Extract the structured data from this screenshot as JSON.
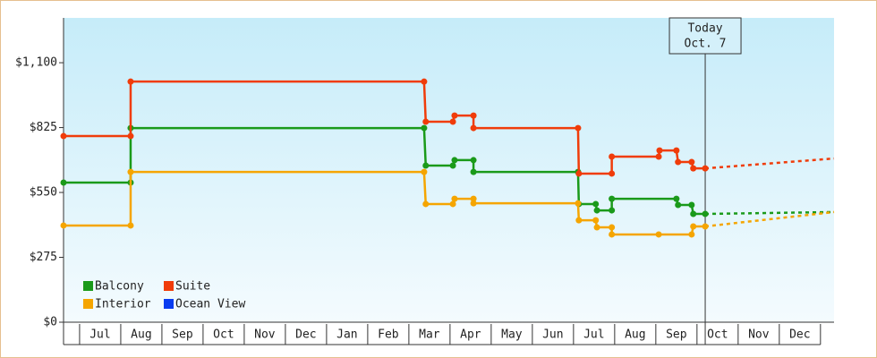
{
  "chart_data": {
    "type": "step-line",
    "xlim": [
      -0.39,
      18.33
    ],
    "xticks": [
      {
        "value": 0.5,
        "label": "Jul"
      },
      {
        "value": 1.5,
        "label": "Aug"
      },
      {
        "value": 2.5,
        "label": "Sep"
      },
      {
        "value": 3.5,
        "label": "Oct"
      },
      {
        "value": 4.5,
        "label": "Nov"
      },
      {
        "value": 5.5,
        "label": "Dec"
      },
      {
        "value": 6.5,
        "label": "Jan"
      },
      {
        "value": 7.5,
        "label": "Feb"
      },
      {
        "value": 8.5,
        "label": "Mar"
      },
      {
        "value": 9.5,
        "label": "Apr"
      },
      {
        "value": 10.5,
        "label": "May"
      },
      {
        "value": 11.5,
        "label": "Jun"
      },
      {
        "value": 12.5,
        "label": "Jul"
      },
      {
        "value": 13.5,
        "label": "Aug"
      },
      {
        "value": 14.5,
        "label": "Sep"
      },
      {
        "value": 15.5,
        "label": "Oct"
      },
      {
        "value": 16.5,
        "label": "Nov"
      },
      {
        "value": 17.5,
        "label": "Dec"
      }
    ],
    "ylim": [
      0,
      1290
    ],
    "yticks": [
      {
        "value": 0,
        "label": "$0"
      },
      {
        "value": 275,
        "label": "$275"
      },
      {
        "value": 550,
        "label": "$550"
      },
      {
        "value": 825,
        "label": "$825"
      },
      {
        "value": 1100,
        "label": "$1,100"
      }
    ],
    "annotations": [
      {
        "x": 15.2,
        "lines": [
          "Today",
          "Oct. 7"
        ]
      }
    ],
    "series": [
      {
        "name": "Balcony",
        "color": "#1a9a1a",
        "x": [
          -0.39,
          1.24,
          1.24,
          8.37,
          8.41,
          9.07,
          9.11,
          9.57,
          9.57,
          12.11,
          12.13,
          12.54,
          12.57,
          12.93,
          12.93,
          14.5,
          14.54,
          14.87,
          14.91,
          15.2
        ],
        "values": [
          592,
          592,
          823,
          823,
          664,
          664,
          687,
          687,
          637,
          637,
          501,
          501,
          474,
          474,
          523,
          523,
          497,
          497,
          459,
          459
        ],
        "projection": {
          "x": [
            15.2,
            18.33
          ],
          "values": [
            459,
            467
          ]
        }
      },
      {
        "name": "Suite",
        "color": "#f03c0a",
        "x": [
          -0.39,
          1.24,
          1.24,
          8.37,
          8.41,
          9.07,
          9.11,
          9.57,
          9.57,
          12.11,
          12.13,
          12.93,
          12.93,
          14.07,
          14.09,
          14.5,
          14.54,
          14.87,
          14.91,
          15.2
        ],
        "values": [
          789,
          789,
          1020,
          1020,
          850,
          850,
          876,
          876,
          823,
          823,
          630,
          630,
          702,
          702,
          728,
          728,
          679,
          679,
          652,
          652
        ],
        "projection": {
          "x": [
            15.2,
            18.33
          ],
          "values": [
            652,
            694
          ]
        }
      },
      {
        "name": "Interior",
        "color": "#f5a500",
        "x": [
          -0.39,
          1.24,
          1.24,
          8.37,
          8.41,
          9.07,
          9.11,
          9.57,
          9.57,
          12.11,
          12.13,
          12.54,
          12.57,
          12.93,
          12.93,
          14.07,
          14.87,
          14.91,
          15.2
        ],
        "values": [
          410,
          410,
          637,
          637,
          501,
          501,
          523,
          523,
          504,
          504,
          432,
          432,
          402,
          402,
          372,
          372,
          372,
          406,
          406
        ],
        "projection": {
          "x": [
            15.2,
            18.33
          ],
          "values": [
            406,
            467
          ]
        }
      },
      {
        "name": "Ocean View",
        "color": "#0a3cf0",
        "x": [],
        "values": []
      }
    ]
  }
}
